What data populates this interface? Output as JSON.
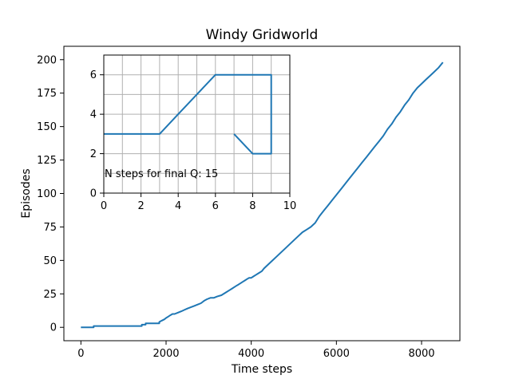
{
  "chart_data": [
    {
      "type": "line",
      "title": "Windy Gridworld",
      "xlabel": "Time steps",
      "ylabel": "Episodes",
      "xlim": [
        -400,
        8900
      ],
      "ylim": [
        -10,
        210
      ],
      "xticks": [
        0,
        2000,
        4000,
        6000,
        8000
      ],
      "yticks": [
        0,
        25,
        50,
        75,
        100,
        125,
        150,
        175,
        200
      ],
      "grid": false,
      "series": [
        {
          "color": "#1f77b4",
          "x": [
            0,
            300,
            300,
            1430,
            1430,
            1520,
            1520,
            1650,
            1650,
            1840,
            1840,
            1900,
            1960,
            2000,
            2050,
            2100,
            2150,
            2200,
            2280,
            2360,
            2430,
            2500,
            2580,
            2660,
            2740,
            2820,
            2900,
            2960,
            3040,
            3120,
            3200,
            3300,
            3400,
            3500,
            3550,
            3600,
            3650,
            3700,
            3750,
            3800,
            3850,
            3900,
            3950,
            4000,
            4050,
            4100,
            4150,
            4200,
            4250,
            4300,
            4400,
            4500,
            4600,
            4700,
            4800,
            4900,
            5000,
            5100,
            5200,
            5300,
            5400,
            5500,
            5600,
            5700,
            5800,
            5900,
            6000,
            6100,
            6200,
            6300,
            6400,
            6500,
            6600,
            6700,
            6800,
            6900,
            7000,
            7100,
            7200,
            7300,
            7400,
            7500,
            7600,
            7700,
            7800,
            7900,
            8000,
            8100,
            8200,
            8300,
            8400,
            8500
          ],
          "y": [
            0,
            0,
            1,
            1,
            2,
            2,
            3,
            3,
            3,
            3,
            4,
            5,
            6,
            7,
            8,
            9,
            10,
            10,
            11,
            12,
            13,
            14,
            15,
            16,
            17,
            18,
            20,
            21,
            22,
            22,
            23,
            24,
            26,
            28,
            29,
            30,
            31,
            32,
            33,
            34,
            35,
            36,
            37,
            37,
            38,
            39,
            40,
            41,
            42,
            44,
            47,
            50,
            53,
            56,
            59,
            62,
            65,
            68,
            71,
            73,
            75,
            78,
            83,
            87,
            91,
            95,
            99,
            103,
            107,
            111,
            115,
            119,
            123,
            127,
            131,
            135,
            139,
            143,
            148,
            152,
            157,
            161,
            166,
            170,
            175,
            179,
            182,
            185,
            188,
            191,
            194,
            198
          ]
        }
      ]
    },
    {
      "type": "line",
      "title": "",
      "xlabel": "",
      "ylabel": "",
      "xlim": [
        0,
        10
      ],
      "ylim": [
        0,
        7
      ],
      "xticks": [
        0,
        2,
        4,
        6,
        8,
        10
      ],
      "yticks": [
        0,
        2,
        4,
        6
      ],
      "grid": true,
      "annotation": "N steps for final Q: 15",
      "series": [
        {
          "color": "#1f77b4",
          "x": [
            0,
            1,
            2,
            3,
            4,
            5,
            6,
            7,
            8,
            9,
            9,
            9,
            9,
            9,
            8,
            7
          ],
          "y": [
            3,
            3,
            3,
            3,
            4,
            5,
            6,
            6,
            6,
            6,
            5,
            4,
            3,
            2,
            2,
            3
          ]
        }
      ]
    }
  ]
}
